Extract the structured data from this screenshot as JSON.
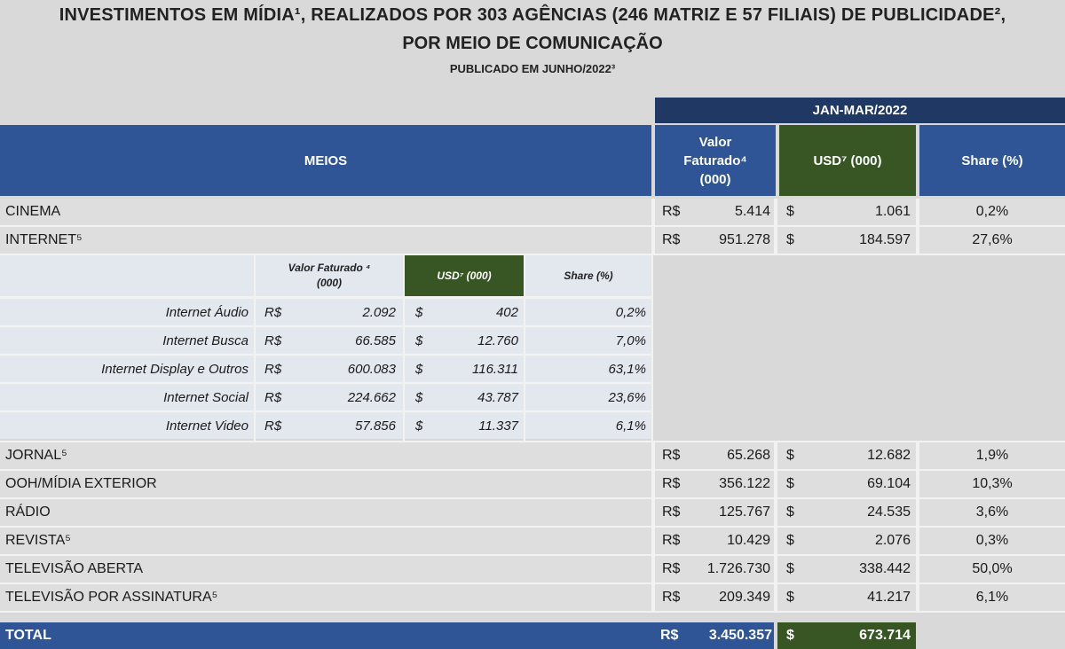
{
  "title": {
    "line1": "INVESTIMENTOS EM MÍDIA¹, REALIZADOS POR 303 AGÊNCIAS (246 MATRIZ E 57 FILIAIS) DE PUBLICIDADE²,",
    "line2": "POR MEIO DE COMUNICAÇÃO",
    "line3": "PUBLICADO EM JUNHO/2022³"
  },
  "header": {
    "period": "JAN-MAR/2022",
    "meios": "MEIOS",
    "valor_faturado_line1": "Valor",
    "valor_faturado_line2": "Faturado⁴",
    "valor_faturado_line3": "(000)",
    "usd": "USD⁷ (000)",
    "share": "Share (%)"
  },
  "colors": {
    "navy": "#1f3864",
    "blue": "#2f5597",
    "green": "#375623"
  },
  "rows_top": [
    {
      "label": "CINEMA",
      "cur1": "R$",
      "val1": "5.414",
      "cur2": "$",
      "val2": "1.061",
      "share": "0,2%"
    },
    {
      "label": "INTERNET⁵",
      "cur1": "R$",
      "val1": "951.278",
      "cur2": "$",
      "val2": "184.597",
      "share": "27,6%"
    }
  ],
  "internet_sub": {
    "header_valor_line1": "Valor Faturado ⁴",
    "header_valor_line2": "(000)",
    "header_usd": "USD⁷ (000)",
    "header_share": "Share (%)",
    "rows": [
      {
        "label": "Internet Áudio",
        "cur1": "R$",
        "val1": "2.092",
        "cur2": "$",
        "val2": "402",
        "share": "0,2%"
      },
      {
        "label": "Internet Busca",
        "cur1": "R$",
        "val1": "66.585",
        "cur2": "$",
        "val2": "12.760",
        "share": "7,0%"
      },
      {
        "label": "Internet Display e Outros",
        "cur1": "R$",
        "val1": "600.083",
        "cur2": "$",
        "val2": "116.311",
        "share": "63,1%"
      },
      {
        "label": "Internet Social",
        "cur1": "R$",
        "val1": "224.662",
        "cur2": "$",
        "val2": "43.787",
        "share": "23,6%"
      },
      {
        "label": "Internet Video",
        "cur1": "R$",
        "val1": "57.856",
        "cur2": "$",
        "val2": "11.337",
        "share": "6,1%"
      }
    ]
  },
  "rows_bottom": [
    {
      "label": "JORNAL⁵",
      "cur1": "R$",
      "val1": "65.268",
      "cur2": "$",
      "val2": "12.682",
      "share": "1,9%"
    },
    {
      "label": "OOH/MÍDIA EXTERIOR",
      "cur1": "R$",
      "val1": "356.122",
      "cur2": "$",
      "val2": "69.104",
      "share": "10,3%"
    },
    {
      "label": "RÁDIO",
      "cur1": "R$",
      "val1": "125.767",
      "cur2": "$",
      "val2": "24.535",
      "share": "3,6%"
    },
    {
      "label": "REVISTA⁵",
      "cur1": "R$",
      "val1": "10.429",
      "cur2": "$",
      "val2": "2.076",
      "share": "0,3%"
    },
    {
      "label": "TELEVISÃO ABERTA",
      "cur1": "R$",
      "val1": "1.726.730",
      "cur2": "$",
      "val2": "338.442",
      "share": "50,0%"
    },
    {
      "label": "TELEVISÃO POR ASSINATURA⁵",
      "cur1": "R$",
      "val1": "209.349",
      "cur2": "$",
      "val2": "41.217",
      "share": "6,1%"
    }
  ],
  "total": {
    "label": "TOTAL",
    "cur1": "R$",
    "val1": "3.450.357",
    "cur2": "$",
    "val2": "673.714"
  }
}
